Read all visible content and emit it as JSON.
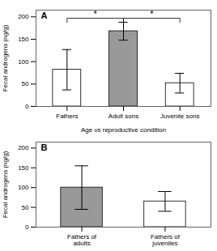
{
  "chart_data": [
    {
      "type": "bar",
      "title": "A",
      "categories": [
        "Fathers",
        "Adult sons",
        "Juvenile sons"
      ],
      "values": [
        82,
        168,
        52
      ],
      "errors": [
        45,
        20,
        22
      ],
      "colors": [
        "white",
        "#999999",
        "white"
      ],
      "xlabel": "Age vs reproductive condition",
      "ylabel": "Fecal androgens (ng/g)",
      "ylim": [
        0,
        215
      ],
      "yticks": [
        0,
        50,
        100,
        150,
        200
      ],
      "grid": false,
      "annotations": [
        {
          "text": "*",
          "x": [
            "Fathers",
            "Adult sons"
          ],
          "y": 197
        },
        {
          "text": "*",
          "x": [
            "Adult sons",
            "Juvenile sons"
          ],
          "y": 197
        }
      ]
    },
    {
      "type": "bar",
      "title": "B",
      "categories": [
        "Fathers of\nadults",
        "Fathers of\njuveniles"
      ],
      "values": [
        100,
        65
      ],
      "errors": [
        55,
        25
      ],
      "colors": [
        "#999999",
        "white"
      ],
      "ylabel": "Fecal androgens (ng/g)",
      "ylim": [
        0,
        215
      ],
      "yticks": [
        0,
        50,
        100,
        150,
        200
      ],
      "grid": false
    }
  ]
}
